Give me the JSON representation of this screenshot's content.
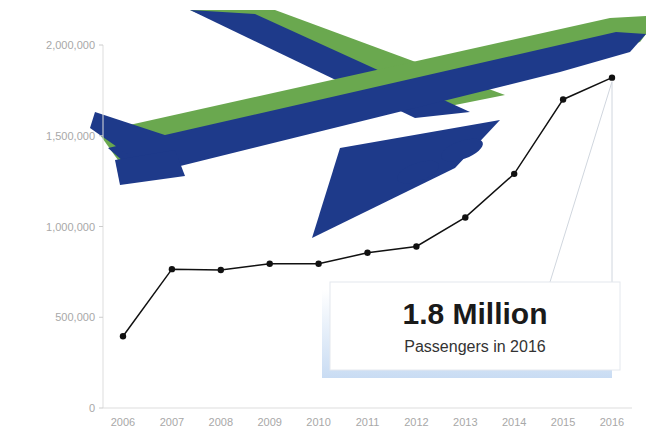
{
  "chart_data": {
    "type": "line",
    "categories": [
      "2006",
      "2007",
      "2008",
      "2009",
      "2010",
      "2011",
      "2012",
      "2013",
      "2014",
      "2015",
      "2016"
    ],
    "values": [
      395000,
      765000,
      760000,
      795000,
      795000,
      855000,
      890000,
      1050000,
      1290000,
      1700000,
      1820000
    ],
    "color": "#111111",
    "marker": "circle",
    "grid": false,
    "ylim": [
      0,
      2000000
    ],
    "yticks": [
      0,
      {
        "value": 500000,
        "label": "500,000"
      },
      {
        "value": 1000000,
        "label": "1,000,000"
      },
      {
        "value": 1500000,
        "label": "1,500,000"
      },
      {
        "value": 2000000,
        "label": "2,000,000"
      }
    ],
    "annotations": [
      "1.8 Million",
      "Passengers in 2016"
    ]
  }
}
